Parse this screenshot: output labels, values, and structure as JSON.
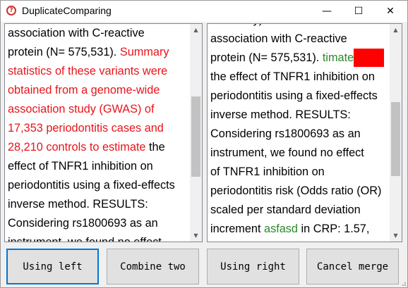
{
  "window": {
    "title": "DuplicateComparing"
  },
  "titlebar": {
    "minimize": "—",
    "maximize": "☐",
    "close": "✕"
  },
  "left": {
    "lines": [
      [
        {
          "t": "association with C-reactive",
          "c": ""
        }
      ],
      [
        {
          "t": "protein (N= 575,531). ",
          "c": ""
        },
        {
          "t": "Summary",
          "c": "red"
        }
      ],
      [
        {
          "t": "statistics of these variants were",
          "c": "red"
        }
      ],
      [
        {
          "t": "obtained from a genome-wide",
          "c": "red"
        }
      ],
      [
        {
          "t": "association study (GWAS) of",
          "c": "red"
        }
      ],
      [
        {
          "t": "17,353 periodontitis cases and",
          "c": "red"
        }
      ],
      [
        {
          "t": "28,210 controls to estimate",
          "c": "red"
        },
        {
          "t": " the",
          "c": ""
        }
      ],
      [
        {
          "t": "effect of TNFR1 inhibition on",
          "c": ""
        }
      ],
      [
        {
          "t": "periodontitis using a fixed-effects",
          "c": ""
        }
      ],
      [
        {
          "t": "inverse method. RESULTS:",
          "c": ""
        }
      ],
      [
        {
          "t": "Considering rs1800693 as an",
          "c": ""
        }
      ],
      [
        {
          "t": "instrument, we found no effect",
          "c": ""
        }
      ]
    ]
  },
  "right": {
    "lines": [
      [
        {
          "t": "assembly) based on their",
          "c": ""
        }
      ],
      [
        {
          "t": "association with C-reactive",
          "c": ""
        }
      ],
      [
        {
          "t": "protein (N= 575,531). ",
          "c": ""
        },
        {
          "t": "timate",
          "c": "green"
        },
        {
          "t": "",
          "c": "box"
        }
      ],
      [
        {
          "t": "the effect of TNFR1 inhibition on",
          "c": ""
        }
      ],
      [
        {
          "t": "periodontitis using a fixed-effects",
          "c": ""
        }
      ],
      [
        {
          "t": "inverse method. RESULTS:",
          "c": ""
        }
      ],
      [
        {
          "t": "Considering rs1800693 as an",
          "c": ""
        }
      ],
      [
        {
          "t": "instrument, we found no effect",
          "c": ""
        }
      ],
      [
        {
          "t": "of TNFR1 inhibition on",
          "c": ""
        }
      ],
      [
        {
          "t": "periodontitis risk (Odds ratio (OR)",
          "c": ""
        }
      ],
      [
        {
          "t": "scaled per standard deviation",
          "c": ""
        }
      ],
      [
        {
          "t": "increment ",
          "c": ""
        },
        {
          "t": "asfasd",
          "c": "green"
        },
        {
          "t": " in CRP: 1.57,",
          "c": ""
        }
      ]
    ]
  },
  "buttons": {
    "using_left": "Using left",
    "combine_two": "Combine two",
    "using_right": "Using right",
    "cancel_merge": "Cancel merge"
  },
  "colors": {
    "highlight_red": "#e8141a",
    "highlight_green": "#2a8a2a",
    "marker_box": "#ff0000",
    "focus_border": "#0078d7"
  }
}
